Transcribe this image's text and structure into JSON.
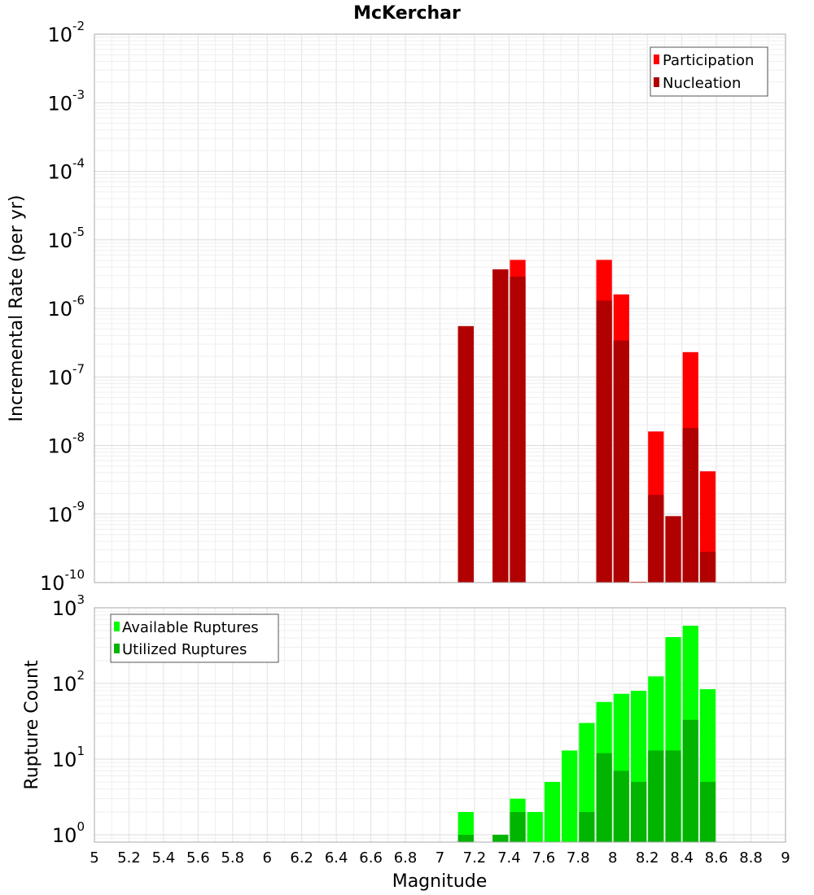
{
  "chart_data": [
    {
      "type": "bar",
      "title": "McKerchar",
      "xlabel": "",
      "ylabel": "Incremental Rate (per yr)",
      "xlim": [
        5,
        9
      ],
      "ylim": [
        1e-10,
        0.01
      ],
      "yscale": "log",
      "bin_width": 0.1,
      "y_tick_exponents": [
        -10,
        -9,
        -8,
        -7,
        -6,
        -5,
        -4,
        -3,
        -2
      ],
      "legend_position": "top-right",
      "series": [
        {
          "name": "Participation",
          "color": "#ff0000",
          "x": [
            7.15,
            7.35,
            7.45,
            7.95,
            8.05,
            8.15,
            8.25,
            8.35,
            8.45,
            8.55
          ],
          "values": [
            5.5e-07,
            3.7e-06,
            5.1e-06,
            5.1e-06,
            1.6e-06,
            1e-10,
            1.6e-08,
            9.3e-10,
            2.3e-07,
            4.2e-09
          ]
        },
        {
          "name": "Nucleation",
          "color": "#b00000",
          "x": [
            7.15,
            7.35,
            7.45,
            7.95,
            8.05,
            8.15,
            8.25,
            8.35,
            8.45,
            8.55
          ],
          "values": [
            5.5e-07,
            3.7e-06,
            2.9e-06,
            1.3e-06,
            3.4e-07,
            1e-10,
            1.9e-09,
            9.3e-10,
            1.8e-08,
            2.8e-10
          ]
        }
      ]
    },
    {
      "type": "bar",
      "title": "",
      "xlabel": "Magnitude",
      "ylabel": "Rupture Count",
      "xlim": [
        5,
        9
      ],
      "ylim": [
        0.8,
        1000
      ],
      "yscale": "log",
      "bin_width": 0.1,
      "x_ticks": [
        "5",
        "5.2",
        "5.4",
        "5.6",
        "5.8",
        "6",
        "6.2",
        "6.4",
        "6.6",
        "6.8",
        "7",
        "7.2",
        "7.4",
        "7.6",
        "7.8",
        "8",
        "8.2",
        "8.4",
        "8.6",
        "8.8",
        "9"
      ],
      "y_tick_exponents": [
        0,
        1,
        2,
        3
      ],
      "legend_position": "top-left",
      "series": [
        {
          "name": "Available Ruptures",
          "color": "#00ff00",
          "x": [
            7.15,
            7.35,
            7.45,
            7.55,
            7.65,
            7.75,
            7.85,
            7.95,
            8.05,
            8.15,
            8.25,
            8.35,
            8.45,
            8.55
          ],
          "values": [
            2,
            1,
            3,
            2,
            5,
            13,
            30,
            57,
            73,
            80,
            124,
            410,
            580,
            84
          ]
        },
        {
          "name": "Utilized Ruptures",
          "color": "#00b400",
          "x": [
            7.15,
            7.35,
            7.45,
            7.55,
            7.65,
            7.75,
            7.85,
            7.95,
            8.05,
            8.15,
            8.25,
            8.35,
            8.45,
            8.55
          ],
          "values": [
            1,
            1,
            2,
            0,
            0,
            0,
            2,
            12,
            7,
            5,
            13,
            13,
            33,
            5
          ]
        }
      ]
    }
  ]
}
